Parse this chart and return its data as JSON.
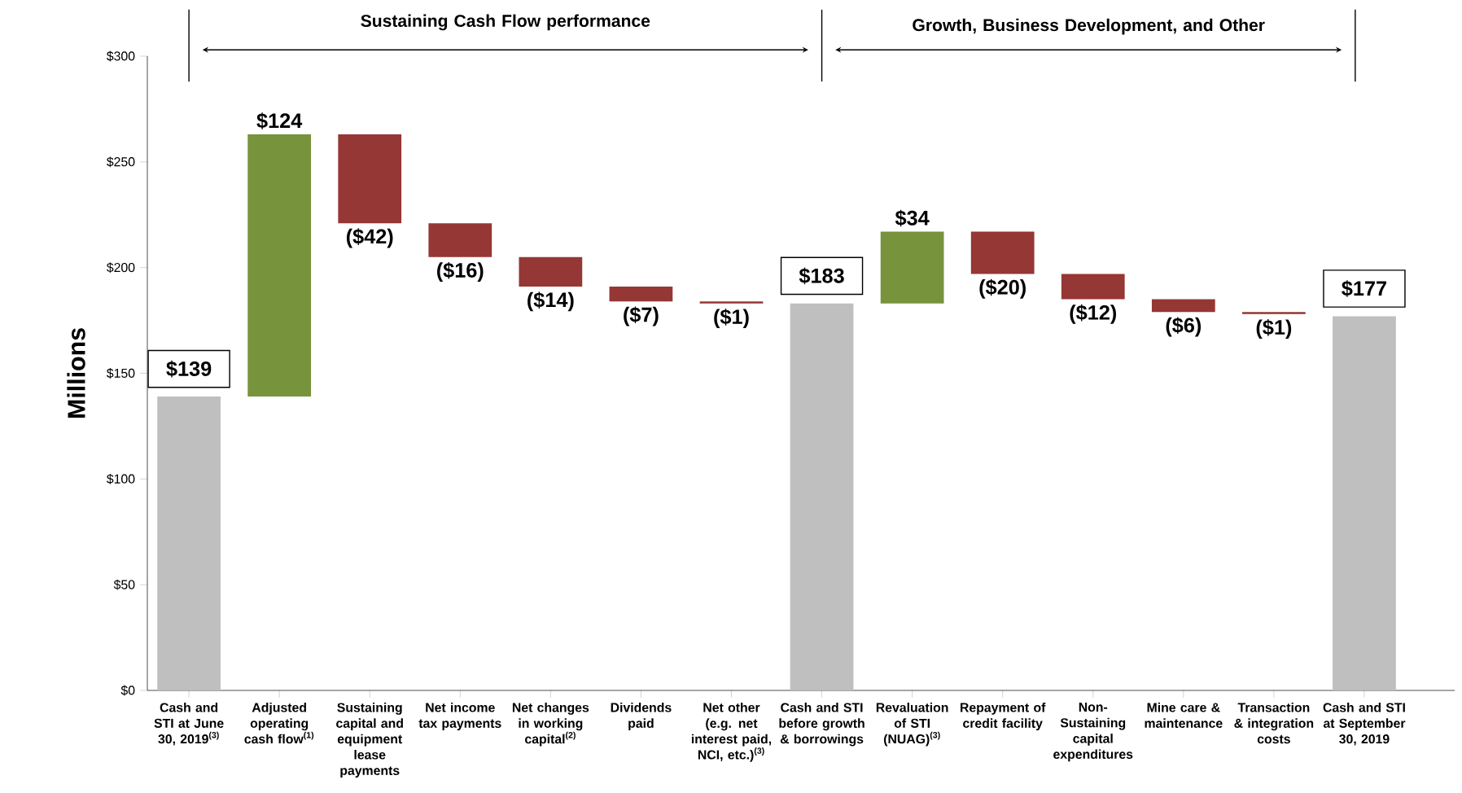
{
  "chart_data": {
    "type": "bar",
    "ylabel": "Millions",
    "annotations": [
      "Sustaining Cash Flow performance",
      "Growth, Business Development, and Other"
    ],
    "categories": [
      "Cash and STI at June 30, 2019$^{(3)}$",
      "Adjusted operating cash flow$^{(1)}$",
      "Sustaining capital and equipment lease payments",
      "Net income tax payments",
      "Net changes in working capital$^{(2)}$",
      "Dividends paid",
      "Net other (e.g. net interest paid, NCI, etc.)$^{(3)}$",
      "Cash and STI before growth & borrowings",
      "Revaluation of STI (NUAG)$^{(3)}$",
      "Repayment of credit facility",
      "Non-Sustaining capital expenditures",
      "Mine care & maintenance",
      "Transaction & integration costs",
      "Cash and STI at September 30, 2019"
    ],
    "values": [
      139,
      124,
      -42,
      -16,
      -14,
      -7,
      -1,
      183,
      34,
      -20,
      -12,
      -6,
      -1,
      177
    ],
    "base": [
      0,
      139,
      263,
      221,
      205,
      191,
      184,
      0,
      183,
      217,
      197,
      185,
      179,
      0
    ],
    "colors": [
      "#bfbfbf",
      "#77933c",
      "#953735",
      "#953735",
      "#953735",
      "#953735",
      "#953735",
      "#bfbfbf",
      "#77933c",
      "#953735",
      "#953735",
      "#953735",
      "#953735",
      "#bfbfbf"
    ],
    "value_labels": [
      "$139",
      "$124",
      "($42)",
      "($16)",
      "($14)",
      "($7)",
      "($1)",
      "$183",
      "$34",
      "($20)",
      "($12)",
      "($6)",
      "($1)",
      "$177"
    ],
    "ylim": [
      0,
      300
    ],
    "yticks": [
      {
        "value": 0,
        "label": "$0"
      },
      {
        "value": 50,
        "label": "$50"
      },
      {
        "value": 100,
        "label": "$100"
      },
      {
        "value": 150,
        "label": "$150"
      },
      {
        "value": 200,
        "label": "$200"
      },
      {
        "value": 250,
        "label": "$250"
      },
      {
        "value": 300,
        "label": "$300"
      }
    ]
  }
}
